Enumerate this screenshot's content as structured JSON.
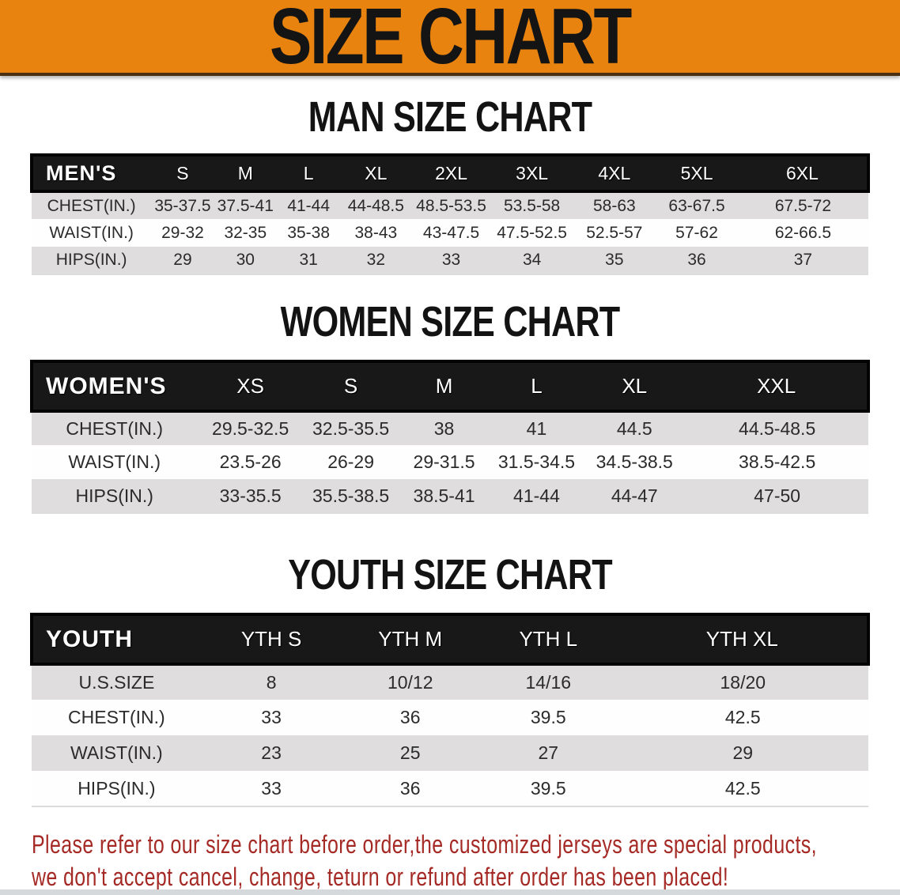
{
  "banner": {
    "title": "SIZE CHART"
  },
  "colors": {
    "banner_bg": "#E8830F",
    "header_bar": "#181818",
    "row_shade": "#DFDDDD",
    "disclaimer_text": "#A52A25"
  },
  "sections": [
    {
      "key": "men",
      "heading": "MAN SIZE CHART",
      "corner_label": "MEN'S",
      "columns": [
        "S",
        "M",
        "L",
        "XL",
        "2XL",
        "3XL",
        "4XL",
        "5XL",
        "6XL"
      ],
      "rows": [
        {
          "label": "CHEST(IN.)",
          "values": [
            "35-37.5",
            "37.5-41",
            "41-44",
            "44-48.5",
            "48.5-53.5",
            "53.5-58",
            "58-63",
            "63-67.5",
            "67.5-72"
          ]
        },
        {
          "label": "WAIST(IN.)",
          "values": [
            "29-32",
            "32-35",
            "35-38",
            "38-43",
            "43-47.5",
            "47.5-52.5",
            "52.5-57",
            "57-62",
            "62-66.5"
          ]
        },
        {
          "label": "HIPS(IN.)",
          "values": [
            "29",
            "30",
            "31",
            "32",
            "33",
            "34",
            "35",
            "36",
            "37"
          ]
        }
      ]
    },
    {
      "key": "women",
      "heading": "WOMEN SIZE CHART",
      "corner_label": "WOMEN'S",
      "columns": [
        "XS",
        "S",
        "M",
        "L",
        "XL",
        "XXL"
      ],
      "rows": [
        {
          "label": "CHEST(IN.)",
          "values": [
            "29.5-32.5",
            "32.5-35.5",
            "38",
            "41",
            "44.5",
            "44.5-48.5"
          ]
        },
        {
          "label": "WAIST(IN.)",
          "values": [
            "23.5-26",
            "26-29",
            "29-31.5",
            "31.5-34.5",
            "34.5-38.5",
            "38.5-42.5"
          ]
        },
        {
          "label": "HIPS(IN.)",
          "values": [
            "33-35.5",
            "35.5-38.5",
            "38.5-41",
            "41-44",
            "44-47",
            "47-50"
          ]
        }
      ]
    },
    {
      "key": "youth",
      "heading": "YOUTH SIZE CHART",
      "corner_label": "YOUTH",
      "columns": [
        "YTH S",
        "YTH M",
        "YTH L",
        "YTH XL"
      ],
      "rows": [
        {
          "label": "U.S.SIZE",
          "values": [
            "8",
            "10/12",
            "14/16",
            "18/20"
          ]
        },
        {
          "label": "CHEST(IN.)",
          "values": [
            "33",
            "36",
            "39.5",
            "42.5"
          ]
        },
        {
          "label": "WAIST(IN.)",
          "values": [
            "23",
            "25",
            "27",
            "29"
          ]
        },
        {
          "label": "HIPS(IN.)",
          "values": [
            "33",
            "36",
            "39.5",
            "42.5"
          ]
        }
      ]
    }
  ],
  "disclaimer": {
    "line1": "Please refer to our size chart before order,the customized jerseys are special products,",
    "line2": "we don't accept cancel, change, teturn or refund after order has been placed!"
  }
}
